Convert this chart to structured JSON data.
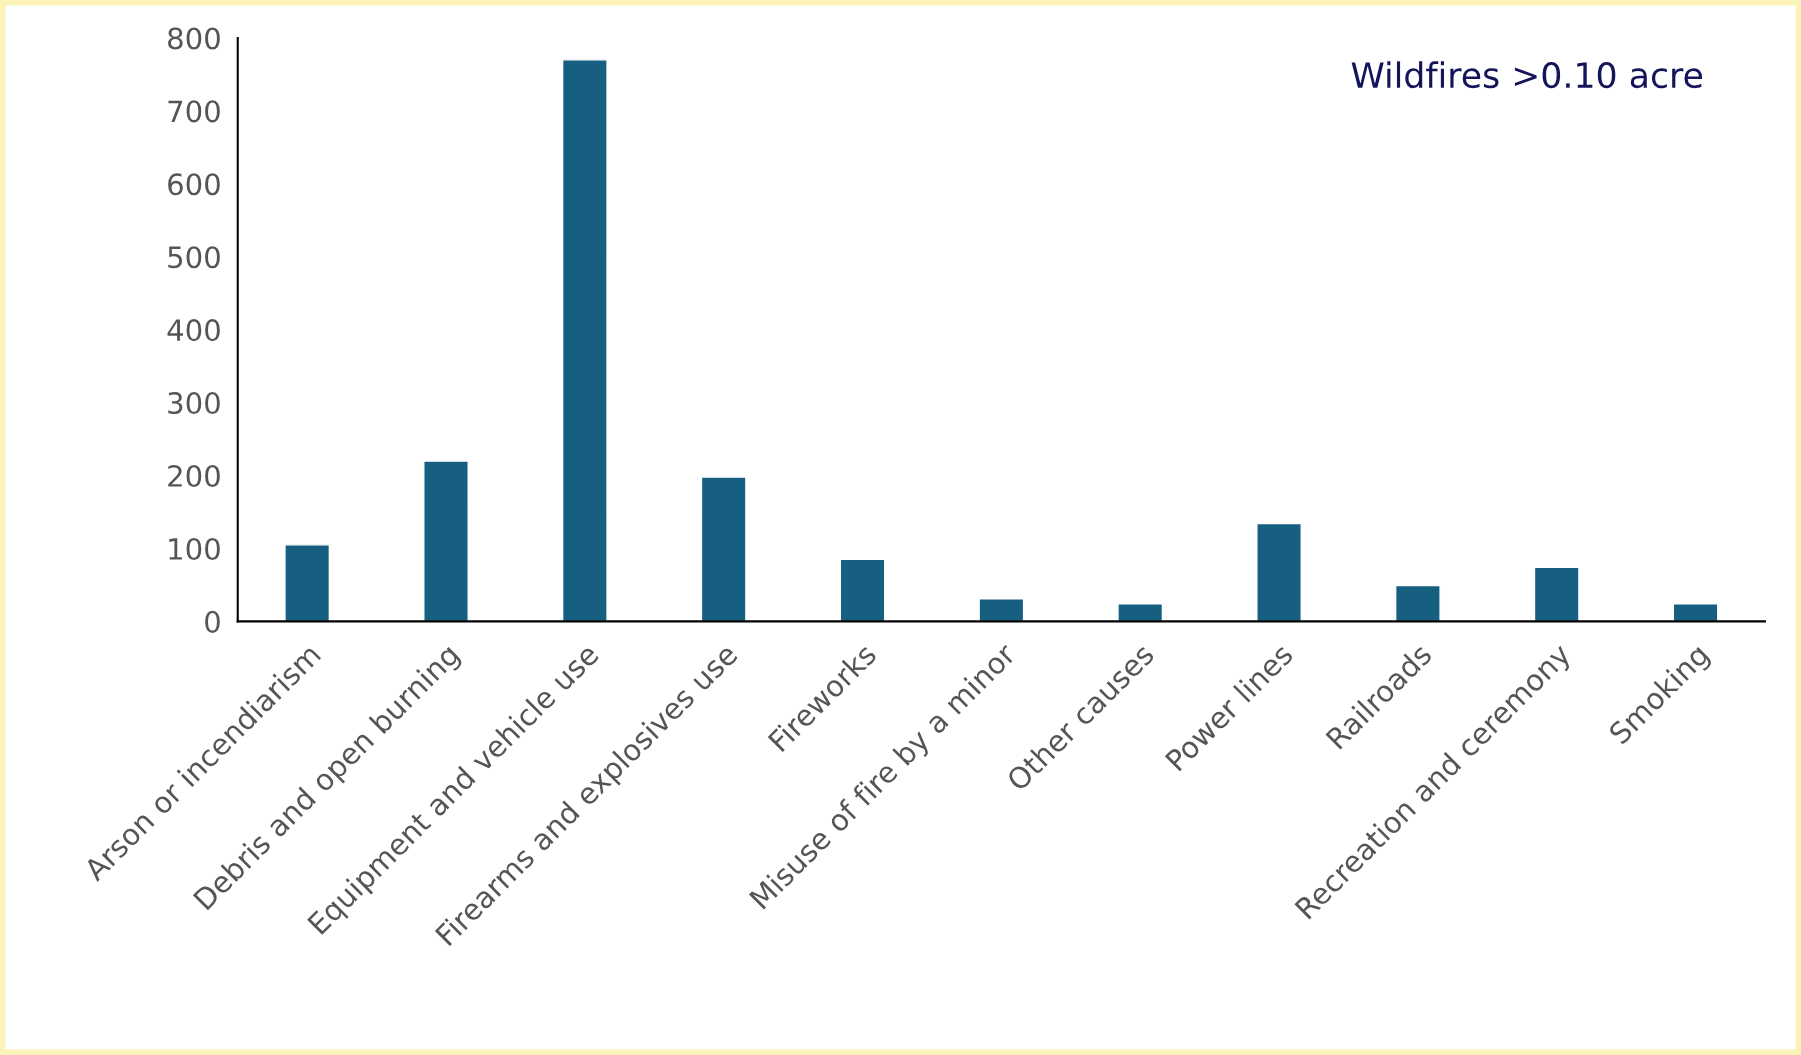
{
  "chart_data": {
    "type": "bar",
    "title": "Wildfires >0.10 acre",
    "categories": [
      "Arson or incendiarism",
      "Debris and open burning",
      "Equipment and vehicle use",
      "Firearms and explosives use",
      "Fireworks",
      "Misuse of fire by a minor",
      "Other causes",
      "Power lines",
      "Railroads",
      "Recreation and ceremony",
      "Smoking"
    ],
    "values": [
      105,
      220,
      770,
      198,
      85,
      31,
      24,
      134,
      49,
      74,
      24
    ],
    "color": "#175f80",
    "ylim": [
      0,
      800
    ],
    "yticks": [
      0,
      100,
      200,
      300,
      400,
      500,
      600,
      700,
      800
    ],
    "grid": false
  }
}
